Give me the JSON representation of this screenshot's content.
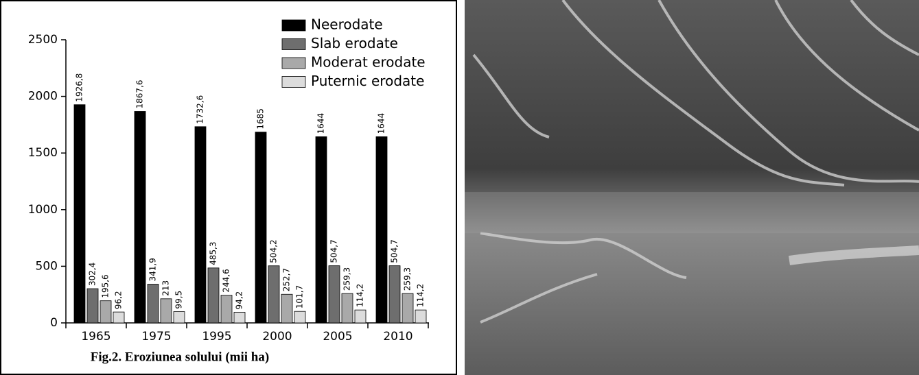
{
  "chart_data": {
    "type": "bar",
    "title": "Fig.2. Eroziunea solului (mii ha)",
    "categories": [
      "1965",
      "1975",
      "1995",
      "2000",
      "2005",
      "2010"
    ],
    "series": [
      {
        "name": "Neerodate",
        "color": "#000000",
        "values": [
          1926.8,
          1867.6,
          1732.6,
          1685,
          1644,
          1644
        ],
        "value_labels": [
          "1926,8",
          "1867,6",
          "1732,6",
          "1685",
          "1644",
          "1644"
        ]
      },
      {
        "name": "Slab erodate",
        "color": "#6e6e6e",
        "values": [
          302.4,
          341.9,
          485.3,
          504.2,
          504.7,
          504.7
        ],
        "value_labels": [
          "302,4",
          "341,9",
          "485,3",
          "504,2",
          "504,7",
          "504,7"
        ]
      },
      {
        "name": "Moderat erodate",
        "color": "#a9a9a9",
        "values": [
          195.6,
          213,
          244.6,
          252.7,
          259.3,
          259.3
        ],
        "value_labels": [
          "195,6",
          "213",
          "244,6",
          "252,7",
          "259,3",
          "259,3"
        ]
      },
      {
        "name": "Puternic erodate",
        "color": "#dcdcdc",
        "values": [
          96.2,
          99.5,
          94.2,
          101.7,
          114.2,
          114.2
        ],
        "value_labels": [
          "96,2",
          "99,5",
          "94,2",
          "101,7",
          "114,2",
          "114,2"
        ]
      }
    ],
    "ylim": [
      0,
      2500
    ],
    "yticks": [
      0,
      500,
      1000,
      1500,
      2000,
      2500
    ],
    "grid": false,
    "legend": "top-right"
  }
}
